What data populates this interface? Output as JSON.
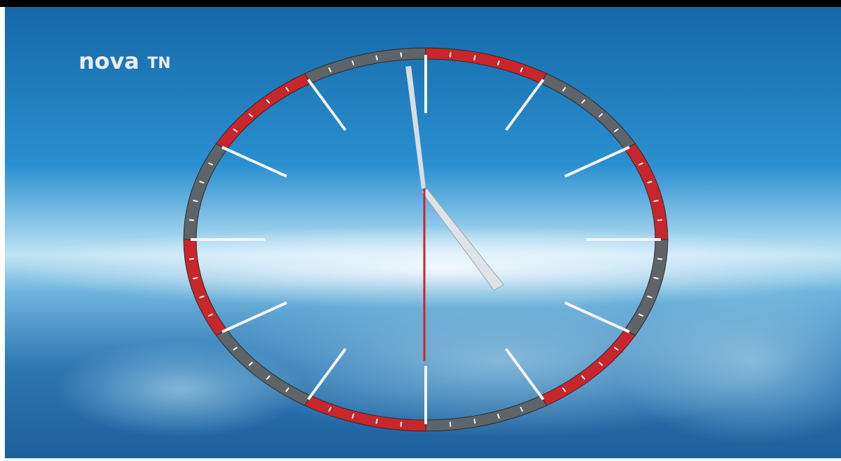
{
  "logo": {
    "brand": "nova",
    "channel": "TN"
  }
}
